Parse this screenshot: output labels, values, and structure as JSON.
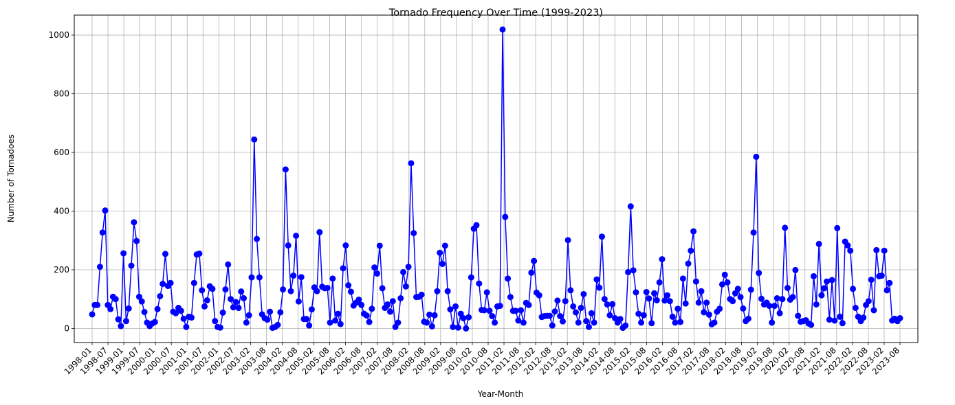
{
  "chart_data": {
    "type": "line",
    "title": "Tornado Frequency Over Time (1999-2023)",
    "xlabel": "Year-Month",
    "ylabel": "Number of Tornadoes",
    "ylim": [
      -48,
      1068
    ],
    "yticks": [
      0,
      200,
      400,
      600,
      800,
      1000
    ],
    "xtick_labels": [
      "1998-01",
      "1998-07",
      "1999-01",
      "1999-07",
      "2000-01",
      "2000-07",
      "2001-01",
      "2001-07",
      "2002-01",
      "2002-07",
      "2003-02",
      "2003-08",
      "2004-02",
      "2004-08",
      "2005-02",
      "2005-08",
      "2006-02",
      "2006-08",
      "2007-02",
      "2007-08",
      "2008-02",
      "2008-08",
      "2009-02",
      "2009-08",
      "2010-02",
      "2010-08",
      "2011-02",
      "2011-08",
      "2012-02",
      "2012-08",
      "2013-02",
      "2013-08",
      "2014-02",
      "2014-08",
      "2015-02",
      "2015-08",
      "2016-02",
      "2016-08",
      "2017-02",
      "2017-08",
      "2018-02",
      "2018-08",
      "2019-02",
      "2019-08",
      "2020-02",
      "2020-08",
      "2021-02",
      "2021-08",
      "2022-02",
      "2022-08",
      "2023-02",
      "2023-08"
    ],
    "grid": true,
    "marker": "circle",
    "line_color": "#0000ff",
    "series": [
      {
        "values": [
          48,
          80,
          80,
          210,
          327,
          402,
          80,
          66,
          108,
          100,
          31,
          8,
          256,
          25,
          68,
          214,
          362,
          298,
          108,
          92,
          56,
          20,
          8,
          17,
          22,
          66,
          110,
          152,
          254,
          145,
          155,
          57,
          52,
          70,
          60,
          33,
          5,
          40,
          37,
          155,
          252,
          255,
          130,
          75,
          96,
          144,
          135,
          25,
          5,
          3,
          54,
          133,
          218,
          100,
          72,
          90,
          70,
          126,
          103,
          20,
          45,
          174,
          644,
          305,
          174,
          48,
          35,
          30,
          57,
          2,
          5,
          12,
          55,
          133,
          542,
          283,
          127,
          180,
          316,
          92,
          175,
          32,
          32,
          10,
          65,
          140,
          127,
          328,
          142,
          137,
          138,
          20,
          170,
          27,
          50,
          15,
          205,
          283,
          147,
          125,
          78,
          88,
          98,
          80,
          50,
          44,
          22,
          67,
          208,
          187,
          282,
          137,
          70,
          82,
          57,
          93,
          5,
          20,
          103,
          192,
          143,
          210,
          563,
          325,
          107,
          108,
          115,
          23,
          20,
          47,
          7,
          45,
          127,
          258,
          220,
          282,
          127,
          65,
          5,
          75,
          3,
          50,
          35,
          0,
          38,
          174,
          340,
          352,
          153,
          63,
          62,
          123,
          60,
          42,
          20,
          75,
          77,
          1019,
          380,
          170,
          107,
          60,
          60,
          27,
          62,
          20,
          87,
          80,
          190,
          230,
          122,
          113,
          39,
          42,
          43,
          43,
          10,
          58,
          95,
          42,
          24,
          93,
          301,
          130,
          75,
          55,
          20,
          70,
          117,
          25,
          5,
          52,
          20,
          167,
          139,
          313,
          100,
          82,
          45,
          83,
          35,
          20,
          32,
          2,
          10,
          192,
          416,
          198,
          123,
          50,
          20,
          45,
          124,
          102,
          18,
          120,
          96,
          157,
          236,
          95,
          113,
          93,
          40,
          20,
          67,
          22,
          170,
          85,
          221,
          265,
          331,
          160,
          88,
          127,
          55,
          88,
          47,
          14,
          20,
          57,
          67,
          150,
          183,
          157,
          100,
          93,
          120,
          135,
          107,
          68,
          25,
          33,
          132,
          327,
          585,
          189,
          101,
          82,
          88,
          77,
          20,
          77,
          103,
          52,
          100,
          343,
          138,
          98,
          107,
          199,
          43,
          23,
          25,
          28,
          17,
          12,
          178,
          82,
          288,
          113,
          137,
          160,
          30,
          165,
          27,
          342,
          40,
          18,
          296,
          283,
          265,
          135,
          70,
          40,
          25,
          37,
          80,
          93,
          166,
          62,
          267,
          178,
          180,
          265,
          130,
          155,
          27,
          33,
          25,
          35
        ]
      }
    ]
  }
}
